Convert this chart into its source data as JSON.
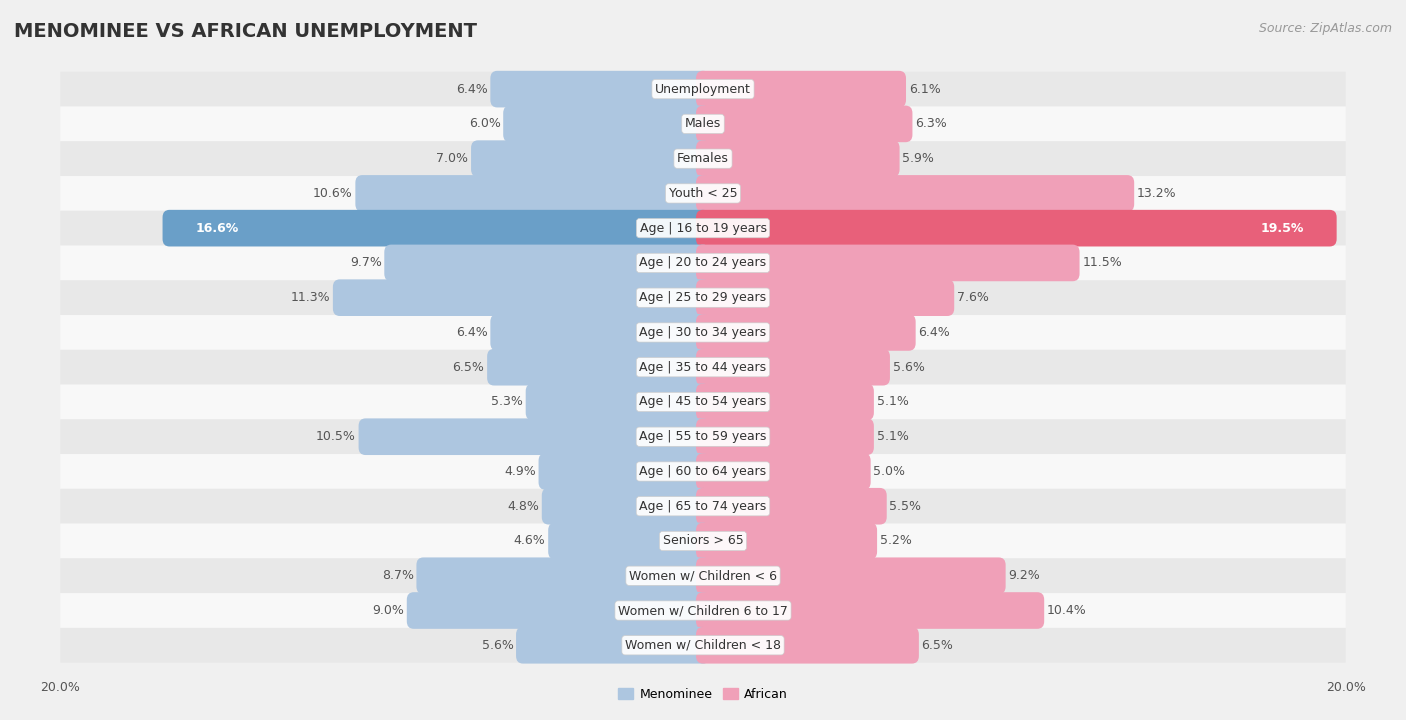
{
  "title": "MENOMINEE VS AFRICAN UNEMPLOYMENT",
  "source": "Source: ZipAtlas.com",
  "categories": [
    "Unemployment",
    "Males",
    "Females",
    "Youth < 25",
    "Age | 16 to 19 years",
    "Age | 20 to 24 years",
    "Age | 25 to 29 years",
    "Age | 30 to 34 years",
    "Age | 35 to 44 years",
    "Age | 45 to 54 years",
    "Age | 55 to 59 years",
    "Age | 60 to 64 years",
    "Age | 65 to 74 years",
    "Seniors > 65",
    "Women w/ Children < 6",
    "Women w/ Children 6 to 17",
    "Women w/ Children < 18"
  ],
  "menominee_values": [
    6.4,
    6.0,
    7.0,
    10.6,
    16.6,
    9.7,
    11.3,
    6.4,
    6.5,
    5.3,
    10.5,
    4.9,
    4.8,
    4.6,
    8.7,
    9.0,
    5.6
  ],
  "african_values": [
    6.1,
    6.3,
    5.9,
    13.2,
    19.5,
    11.5,
    7.6,
    6.4,
    5.6,
    5.1,
    5.1,
    5.0,
    5.5,
    5.2,
    9.2,
    10.4,
    6.5
  ],
  "menominee_color": "#adc6e0",
  "african_color": "#f0a0b8",
  "highlight_menominee_color": "#6a9fc8",
  "highlight_african_color": "#e8607a",
  "axis_max": 20.0,
  "bar_height": 0.62,
  "background_color": "#f0f0f0",
  "row_even_color": "#e8e8e8",
  "row_odd_color": "#f8f8f8",
  "title_fontsize": 14,
  "label_fontsize": 9,
  "tick_fontsize": 9,
  "source_fontsize": 9
}
